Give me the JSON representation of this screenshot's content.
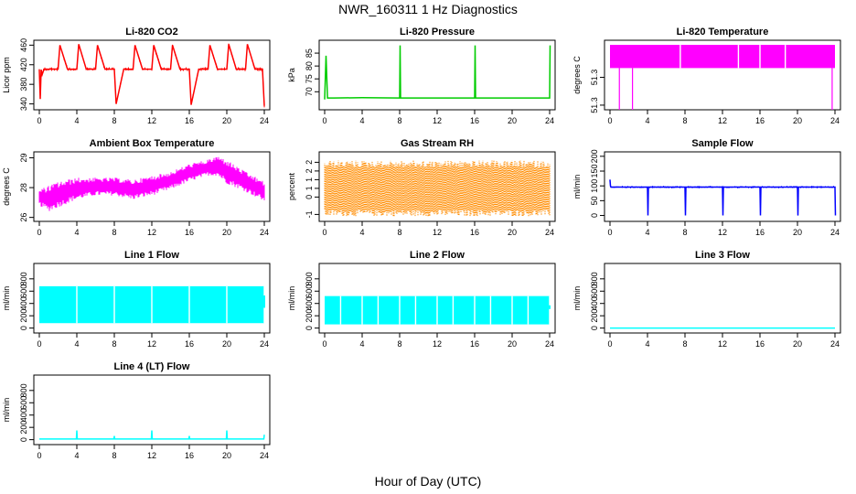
{
  "title": "NWR_160311 1 Hz Diagnostics",
  "xlabel": "Hour of Day (UTC)",
  "chart_data": [
    {
      "type": "line",
      "title": "Li-820 CO2",
      "ylabel": "Licor ppm",
      "color": "#ff0000",
      "xlim": [
        0,
        24
      ],
      "ylim": [
        328,
        470
      ],
      "xticks": [
        0,
        4,
        8,
        12,
        16,
        20,
        24
      ],
      "yticks": [
        340,
        380,
        420,
        460
      ],
      "series": [
        {
          "x": [
            0,
            0.1,
            0.2,
            0.3,
            0.5,
            1,
            2,
            2.2,
            3,
            4,
            4.2,
            5,
            6,
            6.2,
            7,
            8,
            8.2,
            9,
            10,
            10.2,
            11,
            12,
            12.2,
            13,
            14,
            14.2,
            15,
            16,
            16.2,
            17,
            18,
            18.2,
            19,
            20,
            20.2,
            21,
            22,
            22.2,
            23,
            23.8,
            24
          ],
          "y": [
            410,
            350,
            410,
            400,
            411,
            411,
            411,
            460,
            411,
            411,
            462,
            411,
            411,
            460,
            411,
            411,
            340,
            411,
            411,
            460,
            411,
            411,
            460,
            411,
            411,
            460,
            411,
            411,
            338,
            411,
            411,
            460,
            411,
            411,
            462,
            411,
            411,
            462,
            411,
            411,
            336
          ]
        }
      ]
    },
    {
      "type": "line",
      "title": "Li-820 Pressure",
      "ylabel": "kPa",
      "color": "#00cc00",
      "xlim": [
        0,
        24
      ],
      "ylim": [
        63,
        90
      ],
      "xticks": [
        0,
        4,
        8,
        12,
        16,
        20,
        24
      ],
      "yticks": [
        70,
        75,
        80,
        85
      ],
      "series": [
        {
          "x": [
            0,
            0.15,
            0.3,
            1,
            4,
            8,
            8.05,
            8.1,
            12,
            16,
            16.05,
            16.1,
            20,
            24,
            24.05
          ],
          "y": [
            67,
            84,
            67.6,
            67.6,
            67.7,
            67.6,
            88,
            67.6,
            67.6,
            67.6,
            88,
            67.6,
            67.6,
            67.6,
            88
          ]
        }
      ]
    },
    {
      "type": "area",
      "title": "Li-820 Temperature",
      "ylabel": "degrees C",
      "color": "#ff00ff",
      "xlim": [
        0,
        24
      ],
      "ylim": [
        51.245,
        51.32
      ],
      "xticks": [
        0,
        4,
        8,
        12,
        16,
        20,
        24
      ],
      "yticks": [
        51.25,
        51.28
      ],
      "band": [
        51.29,
        51.315
      ],
      "gaps": [
        7.5,
        13.7,
        16.0,
        18.7
      ],
      "spikes": [
        1.0,
        2.4,
        23.7
      ]
    },
    {
      "type": "area",
      "title": "Ambient Box Temperature",
      "ylabel": "degrees C",
      "color": "#ff00ff",
      "xlim": [
        0,
        24
      ],
      "ylim": [
        25.8,
        29.3
      ],
      "xticks": [
        0,
        4,
        8,
        12,
        16,
        20,
        24
      ],
      "yticks": [
        26.0,
        27.5,
        29.0
      ],
      "upper": {
        "x": [
          0,
          1,
          2,
          4,
          6,
          8,
          10,
          12,
          14,
          16,
          18,
          19,
          20,
          22,
          24
        ],
        "y": [
          27.4,
          27.6,
          27.8,
          28.0,
          28.0,
          28.0,
          27.9,
          28.1,
          28.3,
          28.7,
          28.9,
          29.1,
          28.9,
          28.3,
          27.8
        ]
      },
      "lower": {
        "x": [
          0,
          1,
          2,
          4,
          6,
          8,
          10,
          12,
          14,
          16,
          18,
          19,
          20,
          22,
          24
        ],
        "y": [
          26.6,
          26.3,
          26.5,
          26.9,
          27.1,
          27.1,
          26.9,
          27.1,
          27.4,
          27.8,
          28.1,
          28.1,
          27.7,
          27.3,
          26.8
        ]
      }
    },
    {
      "type": "area",
      "title": "Gas Stream RH",
      "ylabel": "percent",
      "color": "#ff8c00",
      "xlim": [
        0,
        24
      ],
      "ylim": [
        -1.4,
        2.6
      ],
      "xticks": [
        0,
        4,
        8,
        12,
        16,
        20,
        24
      ],
      "yticks": [
        -1.0,
        0.0,
        0.5,
        1.0,
        1.5,
        2.0
      ],
      "band": [
        -1.1,
        2.1
      ]
    },
    {
      "type": "line",
      "title": "Sample Flow",
      "ylabel": "ml/min",
      "color": "#0000ff",
      "xlim": [
        0,
        24
      ],
      "ylim": [
        -20,
        215
      ],
      "xticks": [
        0,
        4,
        8,
        12,
        16,
        20,
        24
      ],
      "yticks": [
        0,
        50,
        100,
        150,
        200
      ],
      "series": [
        {
          "x": [
            0,
            0.05,
            0.1,
            4,
            4.05,
            4.1,
            8,
            8.05,
            8.1,
            12,
            12.05,
            12.1,
            16,
            16.05,
            16.1,
            20,
            20.05,
            20.1,
            24,
            24.05
          ],
          "y": [
            120,
            100,
            96,
            96,
            0,
            96,
            96,
            0,
            96,
            96,
            0,
            96,
            96,
            0,
            96,
            96,
            0,
            96,
            96,
            0
          ]
        }
      ]
    },
    {
      "type": "area",
      "title": "Line 1 Flow",
      "ylabel": "ml/min",
      "color": "#00ffff",
      "xlim": [
        0,
        24
      ],
      "ylim": [
        -80,
        1050
      ],
      "xticks": [
        0,
        4,
        8,
        12,
        16,
        20,
        24
      ],
      "yticks": [
        0,
        200,
        400,
        600,
        800
      ],
      "band": [
        80,
        680
      ],
      "gaps": [
        4,
        8,
        12,
        16,
        20,
        24
      ]
    },
    {
      "type": "area",
      "title": "Line 2 Flow",
      "ylabel": "ml/min",
      "color": "#00ffff",
      "xlim": [
        0,
        24
      ],
      "ylim": [
        -80,
        1050
      ],
      "xticks": [
        0,
        4,
        8,
        12,
        16,
        20,
        24
      ],
      "yticks": [
        0,
        200,
        400,
        600,
        800
      ],
      "band": [
        60,
        520
      ],
      "gaps": [
        1.7,
        4,
        5.7,
        8,
        9.7,
        12,
        13.7,
        16,
        17.7,
        20,
        21.7,
        24
      ]
    },
    {
      "type": "line",
      "title": "Line 3 Flow",
      "ylabel": "ml/min",
      "color": "#00ffff",
      "xlim": [
        0,
        24
      ],
      "ylim": [
        -80,
        1050
      ],
      "xticks": [
        0,
        4,
        8,
        12,
        16,
        20,
        24
      ],
      "yticks": [
        0,
        200,
        400,
        600,
        800
      ],
      "series": [
        {
          "x": [
            0,
            24
          ],
          "y": [
            0,
            0
          ]
        }
      ]
    },
    {
      "type": "line",
      "title": "Line 4 (LT) Flow",
      "ylabel": "ml/min",
      "color": "#00ffff",
      "xlim": [
        0,
        24
      ],
      "ylim": [
        -80,
        1050
      ],
      "xticks": [
        0,
        4,
        8,
        12,
        16,
        20,
        24
      ],
      "yticks": [
        0,
        200,
        400,
        600,
        800
      ],
      "series": [
        {
          "x": [
            0,
            3.95,
            4,
            4.05,
            7.95,
            8,
            8.05,
            11.95,
            12,
            12.05,
            15.95,
            16,
            16.05,
            19.95,
            20,
            20.05,
            23.95,
            24
          ],
          "y": [
            10,
            10,
            150,
            10,
            10,
            60,
            10,
            10,
            150,
            10,
            10,
            60,
            10,
            10,
            150,
            10,
            10,
            80
          ]
        }
      ]
    }
  ]
}
